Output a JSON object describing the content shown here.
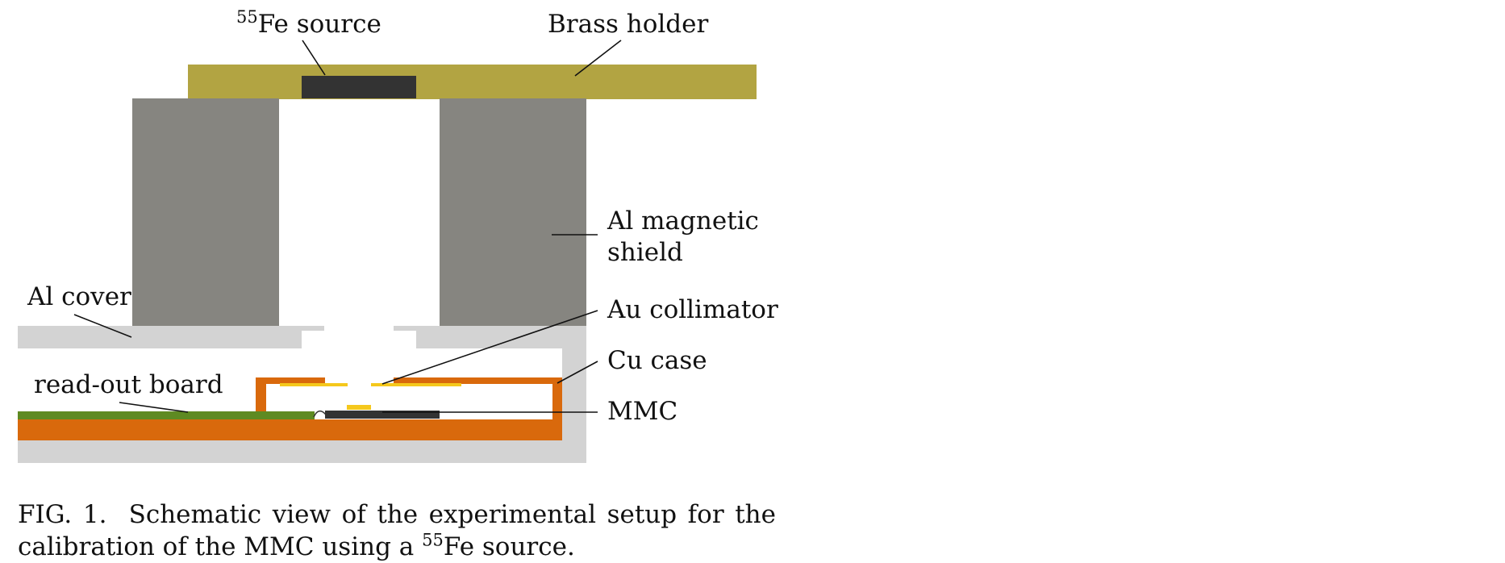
{
  "diagram": {
    "colors": {
      "brass": "#b2a442",
      "shield": "#868580",
      "al_cover": "#d3d3d3",
      "cu_case": "#d9690c",
      "read_out_board": "#5e8a22",
      "gold": "#f5c81c",
      "dark": "#333333",
      "leader_line": "#111111",
      "background": "#ffffff"
    },
    "labels": {
      "fe_source_mass": "55",
      "fe_source_text": "Fe source",
      "brass_holder": "Brass holder",
      "al_magnetic_shield_line1": "Al magnetic",
      "al_magnetic_shield_line2": "shield",
      "al_cover": "Al cover",
      "au_collimator": "Au collimator",
      "cu_case": "Cu case",
      "read_out_board": "read-out board",
      "mmc": "MMC"
    }
  },
  "caption": {
    "prefix": "FIG. 1.",
    "text_before": "Schematic view of the experimental setup for the calibration of the MMC using a",
    "isotope_mass": "55",
    "text_after": "Fe source."
  }
}
